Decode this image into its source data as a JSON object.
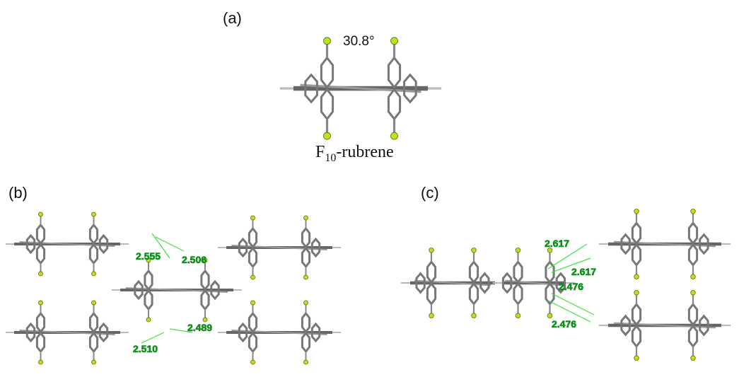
{
  "panels": {
    "a": {
      "label": "(a)",
      "angle": "30.8°",
      "compound": {
        "symbol": "F",
        "subscript": "10",
        "suffix": "-rubrene"
      }
    },
    "b": {
      "label": "(b)",
      "distances": [
        "2.555",
        "2.506",
        "2.489",
        "2.510"
      ]
    },
    "c": {
      "label": "(c)",
      "distances": [
        "2.617",
        "2.617",
        "2.476",
        "2.476"
      ]
    }
  }
}
